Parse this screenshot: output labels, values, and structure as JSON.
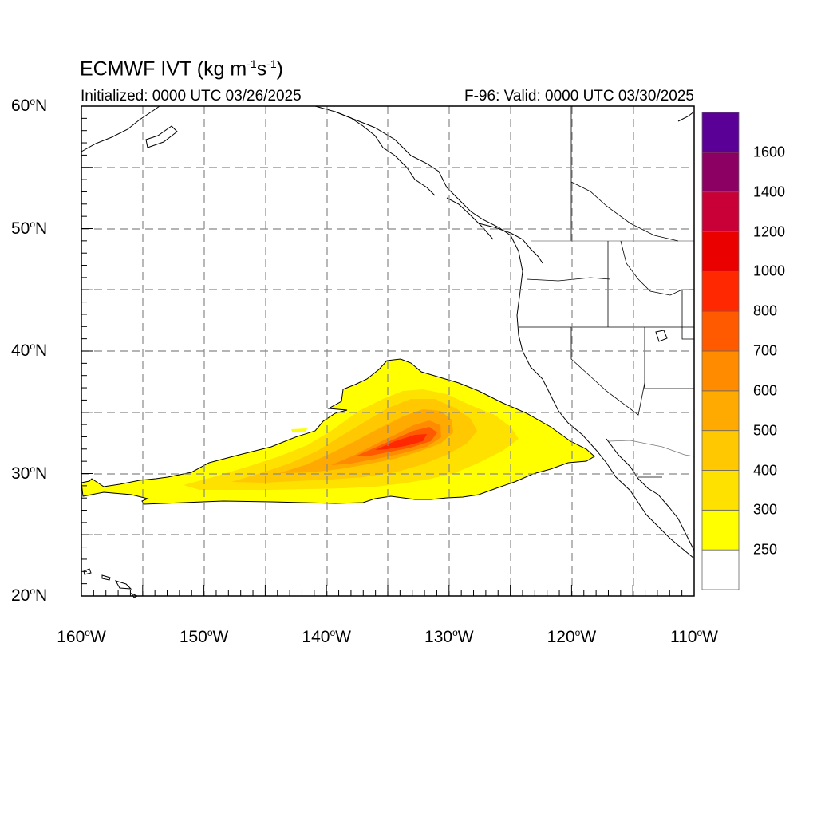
{
  "title": {
    "text": "ECMWF IVT (kg m",
    "exp1": "-1",
    "mid": "s",
    "exp2": "-1",
    "close": ")"
  },
  "subtitle_left": "Initialized: 0000 UTC 03/26/2025",
  "subtitle_right": "F-96: Valid: 0000 UTC 03/30/2025",
  "lat_labels": [
    "60",
    "50",
    "40",
    "30",
    "20"
  ],
  "lat_suffix": "N",
  "lon_labels": [
    "160",
    "150",
    "140",
    "130",
    "120",
    "110"
  ],
  "lon_suffix": "W",
  "degree_symbol": "o",
  "map_extent": {
    "lon_min": -160,
    "lon_max": -110,
    "lat_min": 20,
    "lat_max": 60
  },
  "grid": {
    "spacing_deg": 5,
    "style": "dashed",
    "color": "#888888"
  },
  "colorbar": {
    "labels": [
      "250",
      "300",
      "400",
      "500",
      "600",
      "700",
      "800",
      "1000",
      "1200",
      "1400",
      "1600"
    ],
    "colors": [
      "#ffffff",
      "#ffff00",
      "#ffe100",
      "#ffc800",
      "#ffaa00",
      "#ff8c00",
      "#ff5a00",
      "#ff2800",
      "#eb0000",
      "#c80037",
      "#8c0064",
      "#5a0096"
    ]
  },
  "colors": {
    "coast": "#000000",
    "border": "#777777"
  }
}
